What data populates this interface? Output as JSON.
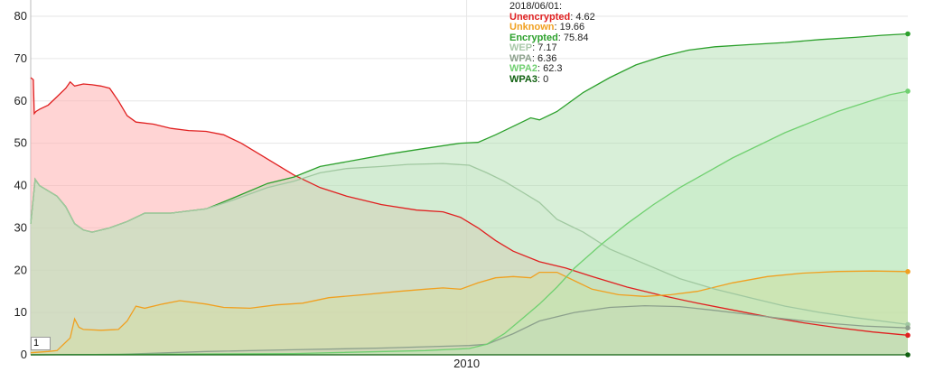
{
  "chart_data": {
    "type": "area",
    "x_axis": {
      "ticks": [
        "2010"
      ]
    },
    "y_axis": {
      "ylim": [
        0,
        80
      ],
      "ticks": [
        "0",
        "10",
        "20",
        "30",
        "40",
        "50",
        "60",
        "70",
        "80"
      ]
    },
    "grid": true,
    "hover_date": "2018/06/01:",
    "series": [
      {
        "name": "Unencrypted",
        "color": "#e02020",
        "fill": "#ffb0b0",
        "fill_opacity": 0.55,
        "last": "4.62",
        "points": [
          [
            0,
            65.5
          ],
          [
            0.003,
            65
          ],
          [
            0.004,
            57
          ],
          [
            0.006,
            57.5
          ],
          [
            0.01,
            58
          ],
          [
            0.02,
            59
          ],
          [
            0.03,
            61
          ],
          [
            0.04,
            63
          ],
          [
            0.045,
            64.5
          ],
          [
            0.05,
            63.5
          ],
          [
            0.06,
            64
          ],
          [
            0.07,
            63.8
          ],
          [
            0.08,
            63.5
          ],
          [
            0.09,
            63
          ],
          [
            0.1,
            60
          ],
          [
            0.11,
            56.5
          ],
          [
            0.12,
            55
          ],
          [
            0.14,
            54.5
          ],
          [
            0.16,
            53.5
          ],
          [
            0.18,
            53
          ],
          [
            0.2,
            52.8
          ],
          [
            0.22,
            52
          ],
          [
            0.24,
            50
          ],
          [
            0.26,
            47.5
          ],
          [
            0.28,
            45
          ],
          [
            0.3,
            42.5
          ],
          [
            0.33,
            39.5
          ],
          [
            0.36,
            37.5
          ],
          [
            0.4,
            35.5
          ],
          [
            0.44,
            34.2
          ],
          [
            0.47,
            33.8
          ],
          [
            0.49,
            32.5
          ],
          [
            0.51,
            30
          ],
          [
            0.53,
            27
          ],
          [
            0.55,
            24.5
          ],
          [
            0.58,
            22
          ],
          [
            0.61,
            20.5
          ],
          [
            0.64,
            18.5
          ],
          [
            0.68,
            16
          ],
          [
            0.72,
            14
          ],
          [
            0.76,
            12.2
          ],
          [
            0.8,
            10.6
          ],
          [
            0.84,
            9
          ],
          [
            0.88,
            7.6
          ],
          [
            0.92,
            6.4
          ],
          [
            0.96,
            5.4
          ],
          [
            1,
            4.62
          ]
        ]
      },
      {
        "name": "Unknown",
        "color": "#f0a020",
        "fill": "#ffd27a",
        "fill_opacity": 0.5,
        "last": "19.66",
        "points": [
          [
            0,
            0.5
          ],
          [
            0.02,
            0.8
          ],
          [
            0.03,
            1
          ],
          [
            0.045,
            4
          ],
          [
            0.05,
            8.5
          ],
          [
            0.055,
            6.5
          ],
          [
            0.06,
            6
          ],
          [
            0.08,
            5.8
          ],
          [
            0.1,
            6
          ],
          [
            0.11,
            8
          ],
          [
            0.12,
            11.5
          ],
          [
            0.13,
            11
          ],
          [
            0.15,
            12
          ],
          [
            0.17,
            12.8
          ],
          [
            0.2,
            12
          ],
          [
            0.22,
            11.2
          ],
          [
            0.25,
            11
          ],
          [
            0.28,
            11.8
          ],
          [
            0.31,
            12.2
          ],
          [
            0.34,
            13.5
          ],
          [
            0.38,
            14.2
          ],
          [
            0.42,
            15
          ],
          [
            0.45,
            15.5
          ],
          [
            0.47,
            15.8
          ],
          [
            0.49,
            15.5
          ],
          [
            0.51,
            17
          ],
          [
            0.53,
            18.2
          ],
          [
            0.55,
            18.5
          ],
          [
            0.57,
            18.2
          ],
          [
            0.58,
            19.5
          ],
          [
            0.6,
            19.5
          ],
          [
            0.62,
            17.5
          ],
          [
            0.64,
            15.5
          ],
          [
            0.67,
            14.2
          ],
          [
            0.7,
            13.8
          ],
          [
            0.73,
            14.2
          ],
          [
            0.76,
            15
          ],
          [
            0.8,
            17
          ],
          [
            0.84,
            18.5
          ],
          [
            0.88,
            19.3
          ],
          [
            0.92,
            19.7
          ],
          [
            0.96,
            19.8
          ],
          [
            1,
            19.66
          ]
        ]
      },
      {
        "name": "Encrypted",
        "color": "#2ca02c",
        "fill": "#a8dca8",
        "fill_opacity": 0.45,
        "last": "75.84",
        "points": [
          [
            0,
            31
          ],
          [
            0.005,
            41.5
          ],
          [
            0.01,
            40
          ],
          [
            0.03,
            37.5
          ],
          [
            0.04,
            35
          ],
          [
            0.05,
            31
          ],
          [
            0.06,
            29.5
          ],
          [
            0.07,
            29
          ],
          [
            0.09,
            30
          ],
          [
            0.11,
            31.5
          ],
          [
            0.13,
            33.5
          ],
          [
            0.16,
            33.5
          ],
          [
            0.2,
            34.5
          ],
          [
            0.23,
            37
          ],
          [
            0.27,
            40.5
          ],
          [
            0.3,
            42
          ],
          [
            0.33,
            44.5
          ],
          [
            0.37,
            46
          ],
          [
            0.41,
            47.5
          ],
          [
            0.45,
            48.8
          ],
          [
            0.49,
            50
          ],
          [
            0.51,
            50.2
          ],
          [
            0.53,
            52
          ],
          [
            0.55,
            54
          ],
          [
            0.57,
            56
          ],
          [
            0.58,
            55.5
          ],
          [
            0.6,
            57.5
          ],
          [
            0.63,
            62
          ],
          [
            0.66,
            65.5
          ],
          [
            0.69,
            68.5
          ],
          [
            0.72,
            70.5
          ],
          [
            0.75,
            72
          ],
          [
            0.78,
            72.8
          ],
          [
            0.82,
            73.3
          ],
          [
            0.86,
            73.8
          ],
          [
            0.9,
            74.5
          ],
          [
            0.94,
            75
          ],
          [
            0.97,
            75.5
          ],
          [
            1,
            75.84
          ]
        ]
      },
      {
        "name": "WEP",
        "color": "#a0c8a0",
        "fill": "#cce8cc",
        "fill_opacity": 0.35,
        "last": "7.17",
        "points": [
          [
            0,
            31
          ],
          [
            0.005,
            41.5
          ],
          [
            0.01,
            40
          ],
          [
            0.03,
            37.5
          ],
          [
            0.04,
            35
          ],
          [
            0.05,
            31
          ],
          [
            0.06,
            29.5
          ],
          [
            0.07,
            29
          ],
          [
            0.09,
            30
          ],
          [
            0.11,
            31.5
          ],
          [
            0.13,
            33.5
          ],
          [
            0.16,
            33.5
          ],
          [
            0.2,
            34.5
          ],
          [
            0.23,
            36.5
          ],
          [
            0.27,
            39.5
          ],
          [
            0.3,
            41
          ],
          [
            0.33,
            43
          ],
          [
            0.36,
            44
          ],
          [
            0.4,
            44.5
          ],
          [
            0.43,
            45
          ],
          [
            0.47,
            45.2
          ],
          [
            0.5,
            44.8
          ],
          [
            0.52,
            43
          ],
          [
            0.54,
            41
          ],
          [
            0.56,
            38.5
          ],
          [
            0.58,
            36
          ],
          [
            0.6,
            32
          ],
          [
            0.63,
            29
          ],
          [
            0.66,
            25
          ],
          [
            0.7,
            21.5
          ],
          [
            0.74,
            18
          ],
          [
            0.78,
            15.5
          ],
          [
            0.82,
            13.5
          ],
          [
            0.86,
            11.5
          ],
          [
            0.9,
            10
          ],
          [
            0.94,
            8.8
          ],
          [
            1,
            7.17
          ]
        ]
      },
      {
        "name": "WPA",
        "color": "#8ca08c",
        "fill": "#c0c8c0",
        "fill_opacity": 0.25,
        "last": "6.36",
        "points": [
          [
            0,
            0
          ],
          [
            0.1,
            0.1
          ],
          [
            0.2,
            0.8
          ],
          [
            0.3,
            1.2
          ],
          [
            0.4,
            1.6
          ],
          [
            0.5,
            2.2
          ],
          [
            0.52,
            2.5
          ],
          [
            0.55,
            5
          ],
          [
            0.58,
            8
          ],
          [
            0.62,
            10
          ],
          [
            0.66,
            11.2
          ],
          [
            0.7,
            11.6
          ],
          [
            0.74,
            11.4
          ],
          [
            0.78,
            10.5
          ],
          [
            0.82,
            9.5
          ],
          [
            0.86,
            8.5
          ],
          [
            0.9,
            7.6
          ],
          [
            0.95,
            6.8
          ],
          [
            1,
            6.36
          ]
        ]
      },
      {
        "name": "WPA2",
        "color": "#70d070",
        "fill": "#b8ecb8",
        "fill_opacity": 0.35,
        "last": "62.3",
        "points": [
          [
            0,
            0
          ],
          [
            0.3,
            0.3
          ],
          [
            0.45,
            1
          ],
          [
            0.5,
            1.5
          ],
          [
            0.52,
            2.5
          ],
          [
            0.54,
            5
          ],
          [
            0.56,
            8.5
          ],
          [
            0.58,
            12
          ],
          [
            0.6,
            16
          ],
          [
            0.62,
            20.5
          ],
          [
            0.65,
            26
          ],
          [
            0.68,
            31
          ],
          [
            0.71,
            35.5
          ],
          [
            0.74,
            39.5
          ],
          [
            0.77,
            43
          ],
          [
            0.8,
            46.5
          ],
          [
            0.83,
            49.5
          ],
          [
            0.86,
            52.5
          ],
          [
            0.89,
            55
          ],
          [
            0.92,
            57.5
          ],
          [
            0.95,
            59.5
          ],
          [
            0.98,
            61.5
          ],
          [
            1,
            62.3
          ]
        ]
      },
      {
        "name": "WPA3",
        "color": "#106010",
        "fill": "#106010",
        "fill_opacity": 0.3,
        "last": "0",
        "points": [
          [
            0,
            0
          ],
          [
            1,
            0
          ]
        ]
      }
    ]
  },
  "legend": {
    "date": "2018/06/01:",
    "rows": [
      {
        "name": "Unencrypted",
        "value": "4.62",
        "color": "#e02020"
      },
      {
        "name": "Unknown",
        "value": "19.66",
        "color": "#f0a020"
      },
      {
        "name": "Encrypted",
        "value": "75.84",
        "color": "#2ca02c"
      },
      {
        "name": "WEP",
        "value": "7.17",
        "color": "#a8c8a8"
      },
      {
        "name": "WPA",
        "value": "6.36",
        "color": "#8ca08c"
      },
      {
        "name": "WPA2",
        "value": "62.3",
        "color": "#70d070"
      },
      {
        "name": "WPA3",
        "value": "0",
        "color": "#106010"
      }
    ]
  },
  "range_input": {
    "value": "1"
  }
}
